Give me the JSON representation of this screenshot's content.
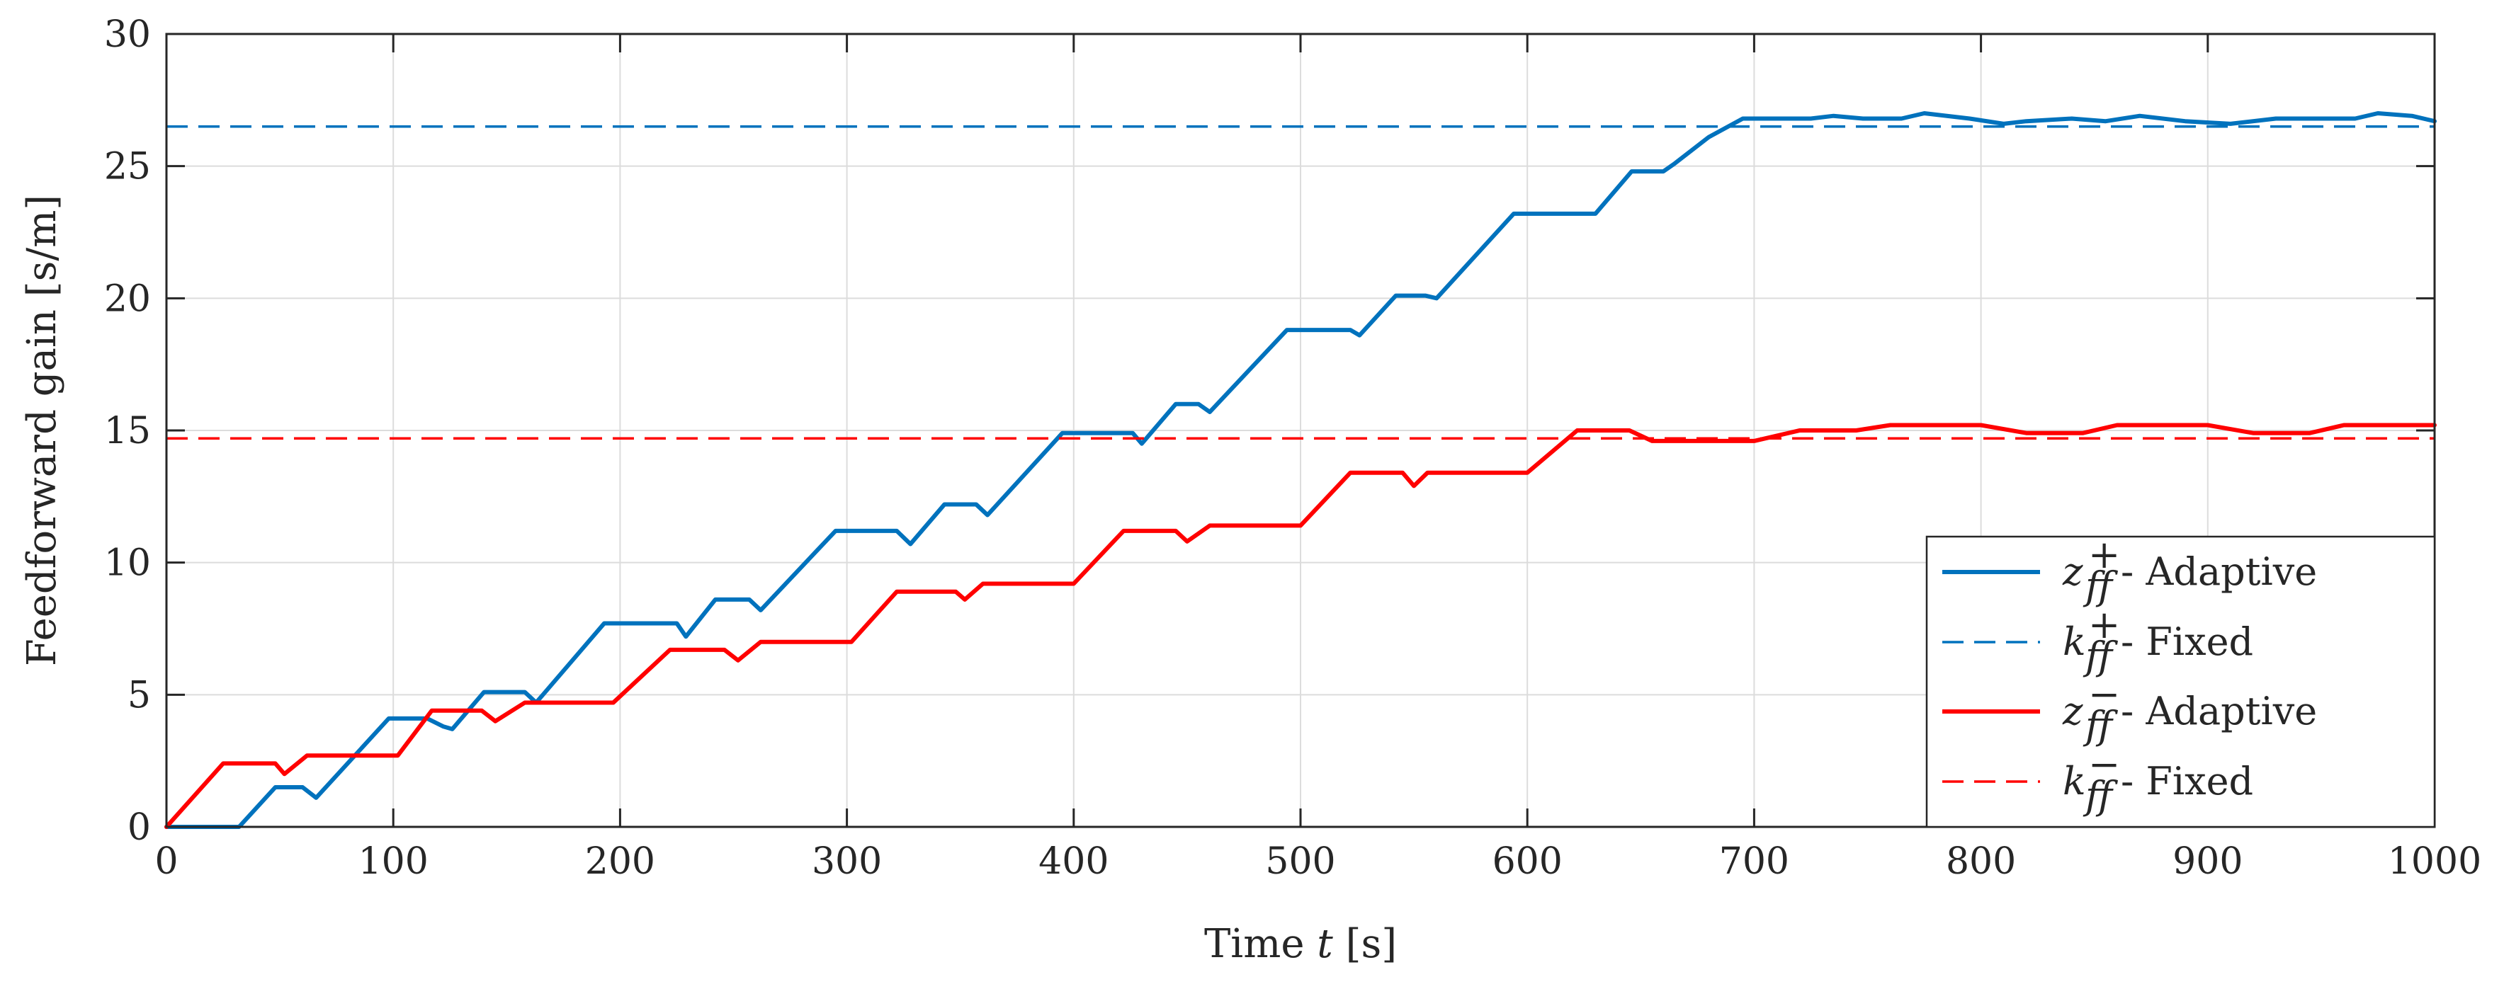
{
  "chart_data": {
    "type": "line",
    "title": "",
    "xlabel": "Time",
    "xlabel_var": "t",
    "xlabel_unit": "[s]",
    "ylabel": "Feedforward gain [s/m]",
    "xlim": [
      0,
      1000
    ],
    "ylim": [
      0,
      30
    ],
    "xticks": [
      0,
      100,
      200,
      300,
      400,
      500,
      600,
      700,
      800,
      900,
      1000
    ],
    "yticks": [
      0,
      5,
      10,
      15,
      20,
      25,
      30
    ],
    "grid": true,
    "legend_position": "bottom-right",
    "series": [
      {
        "name": "z_ff^+ - Adaptive",
        "var": "z",
        "sup": "+",
        "suffix": " - Adaptive",
        "color": "#0072BD",
        "style": "solid",
        "x": [
          0,
          32,
          48,
          60,
          66,
          98,
          115,
          122,
          126,
          140,
          158,
          163,
          193,
          225,
          229,
          242,
          257,
          262,
          295,
          322,
          328,
          343,
          357,
          362,
          395,
          426,
          430,
          445,
          455,
          460,
          494,
          522,
          526,
          542,
          555,
          560,
          594,
          625,
          630,
          646,
          660,
          665,
          680,
          695,
          725,
          735,
          748,
          765,
          775,
          795,
          810,
          820,
          840,
          855,
          870,
          890,
          910,
          930,
          950,
          965,
          975,
          990,
          1000
        ],
        "y": [
          0,
          0,
          1.5,
          1.5,
          1.1,
          4.1,
          4.1,
          3.8,
          3.7,
          5.1,
          5.1,
          4.7,
          7.7,
          7.7,
          7.2,
          8.6,
          8.6,
          8.2,
          11.2,
          11.2,
          10.7,
          12.2,
          12.2,
          11.8,
          14.9,
          14.9,
          14.5,
          16.0,
          16.0,
          15.7,
          18.8,
          18.8,
          18.6,
          20.1,
          20.1,
          20.0,
          23.2,
          23.2,
          23.2,
          24.8,
          24.8,
          25.1,
          26.1,
          26.8,
          26.8,
          26.9,
          26.8,
          26.8,
          27.0,
          26.8,
          26.6,
          26.7,
          26.8,
          26.7,
          26.9,
          26.7,
          26.6,
          26.8,
          26.8,
          26.8,
          27.0,
          26.9,
          26.7
        ]
      },
      {
        "name": "k_ff^+ - Fixed",
        "var": "k",
        "sup": "+",
        "suffix": " - Fixed",
        "color": "#0072BD",
        "style": "dashed",
        "x": [
          0,
          1000
        ],
        "y": [
          26.5,
          26.5
        ]
      },
      {
        "name": "z_ff^- - Adaptive",
        "var": "z",
        "sup": "−",
        "suffix": " - Adaptive",
        "color": "#FF0000",
        "style": "solid",
        "x": [
          0,
          25,
          48,
          52,
          62,
          102,
          117,
          139,
          145,
          158,
          197,
          222,
          246,
          252,
          262,
          302,
          322,
          348,
          352,
          360,
          400,
          422,
          445,
          450,
          460,
          500,
          522,
          545,
          550,
          556,
          600,
          622,
          645,
          655,
          660,
          700,
          720,
          745,
          760,
          800,
          820,
          845,
          860,
          900,
          920,
          945,
          960,
          1000
        ],
        "y": [
          0,
          2.4,
          2.4,
          2.0,
          2.7,
          2.7,
          4.4,
          4.4,
          4.0,
          4.7,
          4.7,
          6.7,
          6.7,
          6.3,
          7.0,
          7.0,
          8.9,
          8.9,
          8.6,
          9.2,
          9.2,
          11.2,
          11.2,
          10.8,
          11.4,
          11.4,
          13.4,
          13.4,
          12.9,
          13.4,
          13.4,
          15.0,
          15.0,
          14.6,
          14.6,
          14.6,
          15.0,
          15.0,
          15.2,
          15.2,
          14.9,
          14.9,
          15.2,
          15.2,
          14.9,
          14.9,
          15.2,
          15.2
        ]
      },
      {
        "name": "k_ff^- - Fixed",
        "var": "k",
        "sup": "−",
        "suffix": " - Fixed",
        "color": "#FF0000",
        "style": "dashed",
        "x": [
          0,
          1000
        ],
        "y": [
          14.7,
          14.7
        ]
      }
    ]
  }
}
